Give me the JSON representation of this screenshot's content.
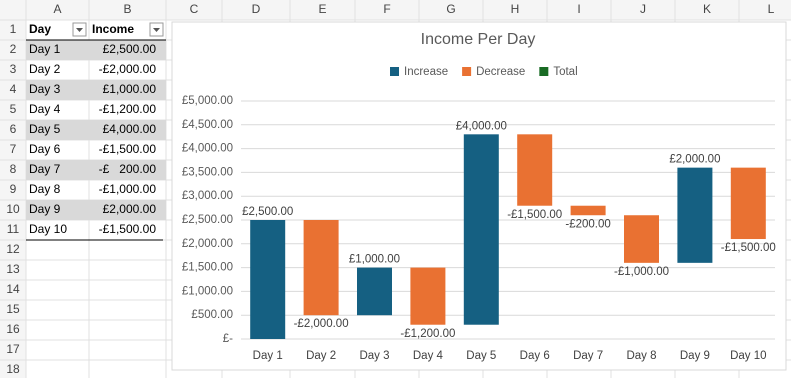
{
  "sheet": {
    "columns": [
      "A",
      "B",
      "C",
      "D",
      "E",
      "F",
      "G",
      "H",
      "I",
      "J",
      "K",
      "L"
    ],
    "rows": [
      1,
      2,
      3,
      4,
      5,
      6,
      7,
      8,
      9,
      10,
      11,
      12,
      13,
      14,
      15,
      16,
      17,
      18
    ]
  },
  "table": {
    "header": [
      "Day",
      "Income"
    ],
    "rows": [
      [
        "Day 1",
        "£2,500.00"
      ],
      [
        "Day 2",
        "-£2,000.00"
      ],
      [
        "Day 3",
        "£1,000.00"
      ],
      [
        "Day 4",
        "-£1,200.00"
      ],
      [
        "Day 5",
        "£4,000.00"
      ],
      [
        "Day 6",
        "-£1,500.00"
      ],
      [
        "Day 7",
        "-£   200.00"
      ],
      [
        "Day 8",
        "-£1,000.00"
      ],
      [
        "Day 9",
        "£2,000.00"
      ],
      [
        "Day 10",
        "-£1,500.00"
      ]
    ]
  },
  "chart_data": {
    "type": "waterfall",
    "title": "Income Per Day",
    "categories": [
      "Day 1",
      "Day 2",
      "Day 3",
      "Day 4",
      "Day 5",
      "Day 6",
      "Day 7",
      "Day 8",
      "Day 9",
      "Day 10"
    ],
    "values": [
      2500,
      -2000,
      1000,
      -1200,
      4000,
      -1500,
      -200,
      -1000,
      2000,
      -1500
    ],
    "value_labels": [
      "£2,500.00",
      "-£2,000.00",
      "£1,000.00",
      "-£1,200.00",
      "£4,000.00",
      "-£1,500.00",
      "-£200.00",
      "-£1,000.00",
      "£2,000.00",
      "-£1,500.00"
    ],
    "legend": [
      {
        "name": "Increase",
        "color": "#156082"
      },
      {
        "name": "Decrease",
        "color": "#e97132"
      },
      {
        "name": "Total",
        "color": "#196b24"
      }
    ],
    "ylim": [
      0,
      5000
    ],
    "yticks": [
      {
        "value": 0,
        "label": "£-"
      },
      {
        "value": 500,
        "label": "£500.00"
      },
      {
        "value": 1000,
        "label": "£1,000.00"
      },
      {
        "value": 1500,
        "label": "£1,500.00"
      },
      {
        "value": 2000,
        "label": "£2,000.00"
      },
      {
        "value": 2500,
        "label": "£2,500.00"
      },
      {
        "value": 3000,
        "label": "£3,000.00"
      },
      {
        "value": 3500,
        "label": "£3,500.00"
      },
      {
        "value": 4000,
        "label": "£4,000.00"
      },
      {
        "value": 4500,
        "label": "£4,500.00"
      },
      {
        "value": 5000,
        "label": "£5,000.00"
      }
    ],
    "grid": true
  }
}
